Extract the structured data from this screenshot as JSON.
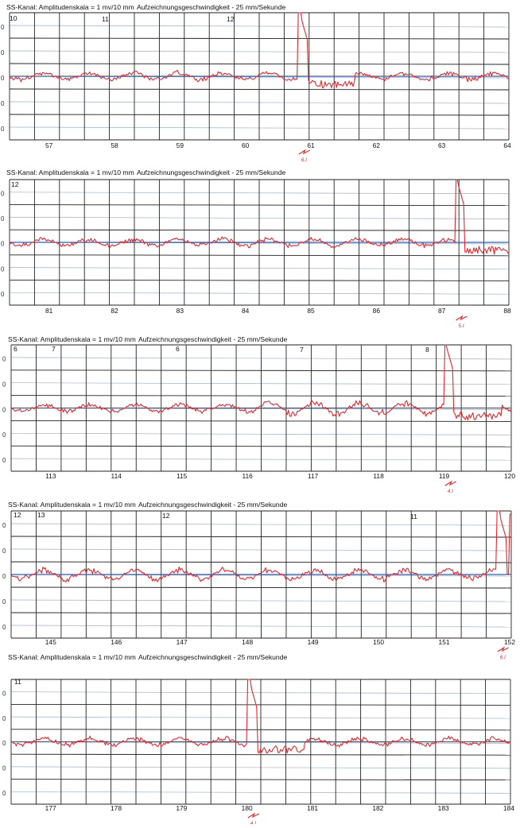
{
  "document": {
    "panels": [
      {
        "header": {
          "channel": "SS-Kanal: Amplitudenskala = 1 mv/10 mm",
          "speed": "Aufzeichnungsgeschwindigkeit - 25 mm/Sekunde"
        },
        "corner_labels": [
          "10",
          "11",
          "12"
        ],
        "y_axis_marks": [
          "0",
          "0",
          "0",
          "0",
          "0"
        ],
        "x_ticks": [
          "57",
          "58",
          "59",
          "60",
          "61",
          "62",
          "63",
          "64"
        ],
        "marker": {
          "label": "6.I",
          "tick": "61"
        }
      },
      {
        "header": {
          "channel": "SS-Kanal: Amplitudenskala = 1 mv/10 mm",
          "speed": "Aufzeichnungsgeschwindigkeit - 25 mm/Sekunde"
        },
        "corner_labels": [
          "12"
        ],
        "y_axis_marks": [
          "0",
          "0",
          "0",
          "0",
          "0"
        ],
        "x_ticks": [
          "81",
          "82",
          "83",
          "84",
          "85",
          "86",
          "87",
          "88"
        ],
        "marker": {
          "label": "5.I",
          "tick": "87"
        }
      },
      {
        "header": {
          "channel": "SS-Kanal: Amplitudenskala = 1 mv/10 mm",
          "speed": "Aufzeichnungsgeschwindigkeit - 25 mm/Sekunde"
        },
        "corner_labels": [
          "6",
          "7",
          "6",
          "7",
          "8"
        ],
        "y_axis_marks": [
          "0",
          "0",
          "0",
          "0",
          "0"
        ],
        "x_ticks": [
          "113",
          "114",
          "115",
          "116",
          "117",
          "118",
          "119",
          "120"
        ],
        "marker": {
          "label": "4.I",
          "tick": "119"
        }
      },
      {
        "header": {
          "channel": "SS-Kanal: Amplitudenskala = 1 mv/10 mm",
          "speed": "Aufzeichnungsgeschwindigkeit - 25 mm/Sekunde"
        },
        "corner_labels": [
          "12",
          "13",
          "12",
          "11"
        ],
        "y_axis_marks": [
          "0",
          "0",
          "0",
          "0",
          "0"
        ],
        "x_ticks": [
          "145",
          "146",
          "147",
          "148",
          "149",
          "150",
          "151",
          "152"
        ],
        "marker": {
          "label": "6.I",
          "tick": "152"
        }
      },
      {
        "header": {
          "channel": "SS-Kanal: Amplitudenskala = 1 mv/10 mm",
          "speed": "Aufzeichnungsgeschwindigkeit - 25 mm/Sekunde"
        },
        "corner_labels": [
          "11"
        ],
        "y_axis_marks": [
          "0",
          "0",
          "0",
          "0",
          "0"
        ],
        "x_ticks": [
          "177",
          "178",
          "179",
          "180",
          "181",
          "182",
          "183",
          "184"
        ],
        "marker": {
          "label": "4.I",
          "tick": "180"
        }
      }
    ]
  },
  "chart_data": [
    {
      "type": "line",
      "x_ticks": [
        57,
        58,
        59,
        60,
        61,
        62,
        63,
        64
      ],
      "trace_color": "#e8262b",
      "baseline_color": "#2a62b8",
      "grid_color": "#222222",
      "grid": true,
      "amplitude_scale": "1 mv/10 mm",
      "paper_speed": "25 mm/Sekunde",
      "event_x": 60.9,
      "event_marker": "6.I"
    },
    {
      "type": "line",
      "x_ticks": [
        81,
        82,
        83,
        84,
        85,
        86,
        87,
        88
      ],
      "trace_color": "#e8262b",
      "baseline_color": "#2a62b8",
      "grid_color": "#222222",
      "grid": true,
      "amplitude_scale": "1 mv/10 mm",
      "paper_speed": "25 mm/Sekunde",
      "event_x": 87.3,
      "event_marker": "5.I"
    },
    {
      "type": "line",
      "x_ticks": [
        113,
        114,
        115,
        116,
        117,
        118,
        119,
        120
      ],
      "trace_color": "#e8262b",
      "baseline_color": "#2a62b8",
      "grid_color": "#222222",
      "grid": true,
      "amplitude_scale": "1 mv/10 mm",
      "paper_speed": "25 mm/Sekunde",
      "event_x": 119.1,
      "event_marker": "4.I"
    },
    {
      "type": "line",
      "x_ticks": [
        145,
        146,
        147,
        148,
        149,
        150,
        151,
        152
      ],
      "trace_color": "#e8262b",
      "baseline_color": "#2a62b8",
      "grid_color": "#222222",
      "grid": true,
      "amplitude_scale": "1 mv/10 mm",
      "paper_speed": "25 mm/Sekunde",
      "event_x": 151.9,
      "event_marker": "6.I"
    },
    {
      "type": "line",
      "x_ticks": [
        177,
        178,
        179,
        180,
        181,
        182,
        183,
        184
      ],
      "trace_color": "#e8262b",
      "baseline_color": "#2a62b8",
      "grid_color": "#222222",
      "grid": true,
      "amplitude_scale": "1 mv/10 mm",
      "paper_speed": "25 mm/Sekunde",
      "event_x": 180.1,
      "event_marker": "4.I"
    }
  ]
}
